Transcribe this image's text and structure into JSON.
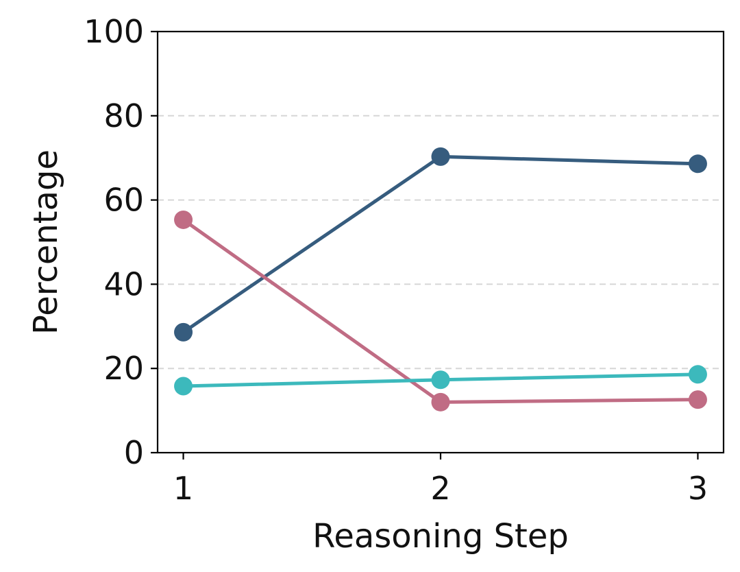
{
  "chart_data": {
    "type": "line",
    "title": "",
    "xlabel": "Reasoning Step",
    "ylabel": "Percentage",
    "x": [
      1,
      2,
      3
    ],
    "xlim": [
      0.9,
      3.1
    ],
    "ylim": [
      0,
      100
    ],
    "yticks": [
      0,
      20,
      40,
      60,
      80,
      100
    ],
    "xticks": [
      1,
      2,
      3
    ],
    "grid": "horizontal-dashed",
    "legend": "none",
    "series": [
      {
        "color": "#365C7E",
        "values": [
          28.6,
          70.3,
          68.6
        ]
      },
      {
        "color": "#C06C84",
        "values": [
          55.3,
          12.0,
          12.6
        ]
      },
      {
        "color": "#3CB9BC",
        "values": [
          15.8,
          17.3,
          18.6
        ]
      }
    ]
  }
}
